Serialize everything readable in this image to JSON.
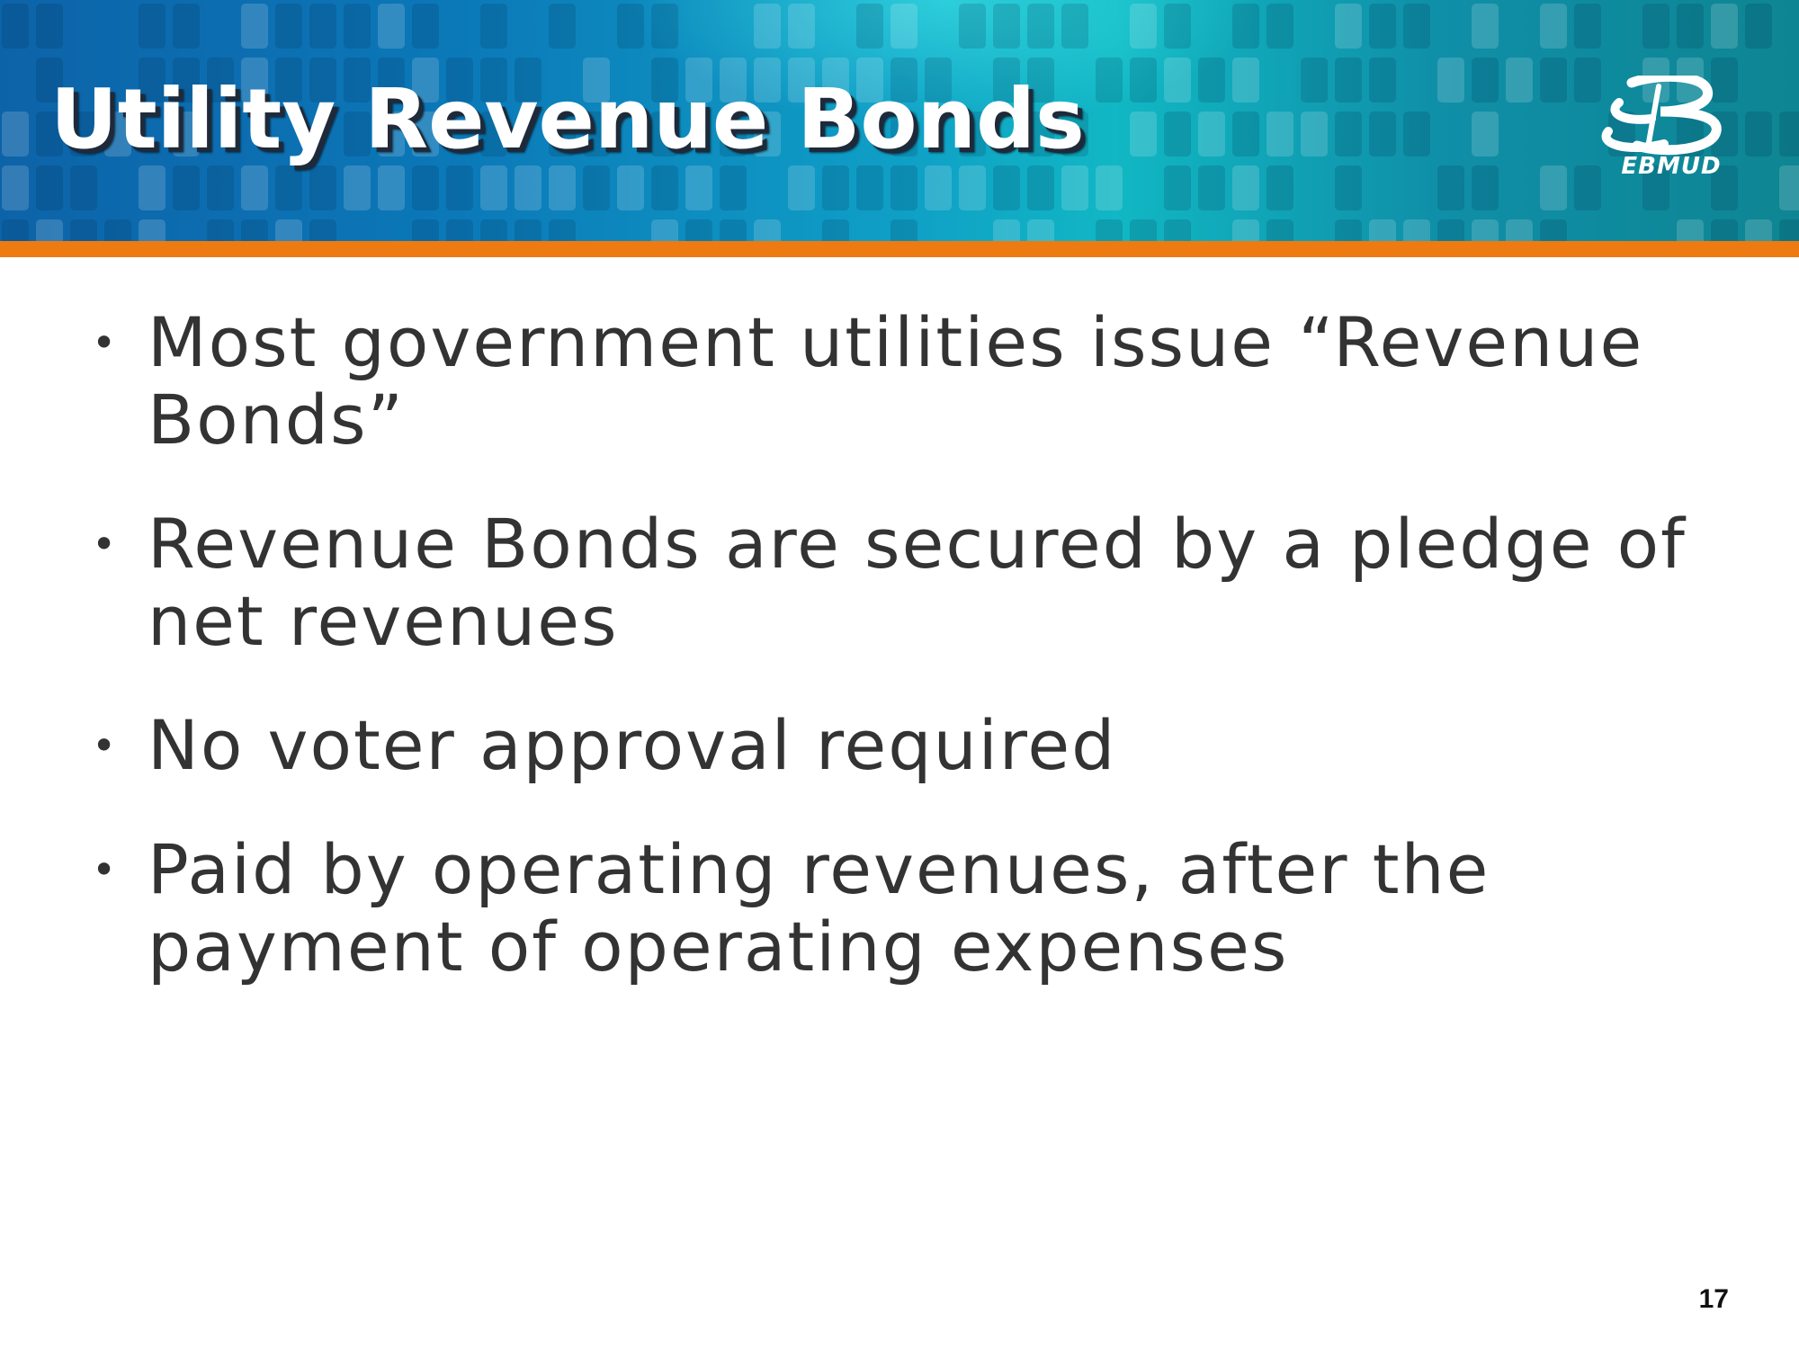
{
  "slide": {
    "title": "Utility Revenue Bonds",
    "logo_text": "EBMUD",
    "bullets": [
      "Most government utilities issue “Revenue Bonds”",
      "Revenue Bonds are secured by a pledge of net revenues",
      "No voter approval required",
      "Paid by operating revenues, after the payment of operating expenses"
    ],
    "bullet_symbol": "•",
    "page_number": "17"
  },
  "colors": {
    "header_blue": "#0b78b8",
    "header_teal": "#11b7c4",
    "accent_orange": "#ee7a12",
    "body_text": "#333333"
  },
  "icons": {
    "logo": "ebmud-logo-icon"
  }
}
